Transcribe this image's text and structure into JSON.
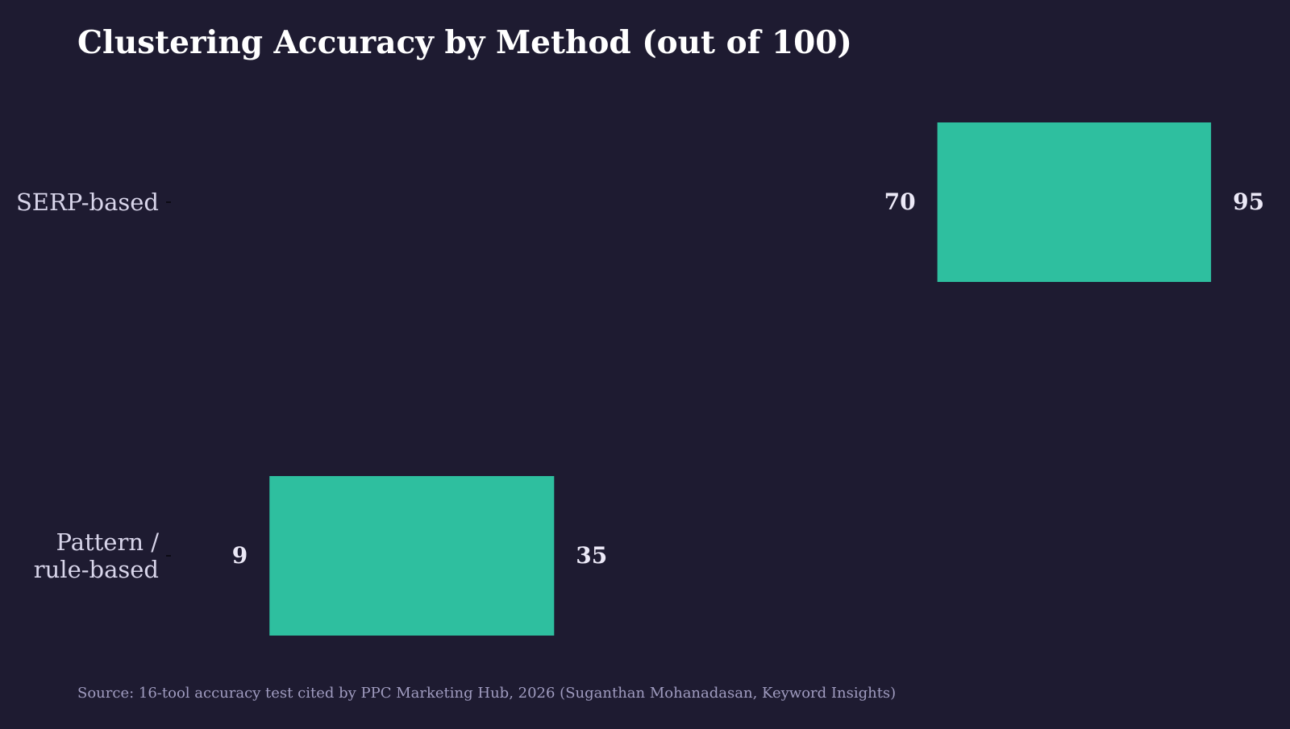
{
  "chart_data": {
    "type": "bar",
    "orientation": "horizontal",
    "style": "range",
    "title": "Clustering Accuracy by Method (out of 100)",
    "source": "Source: 16-tool accuracy test cited by PPC Marketing Hub, 2026 (Suganthan Mohanadasan, Keyword Insights)",
    "categories": [
      [
        "SERP-based"
      ],
      [
        "Pattern /",
        "rule-based"
      ]
    ],
    "series": [
      {
        "ranges": [
          {
            "low": 70,
            "high": 95,
            "low_label": "70",
            "high_label": "95"
          },
          {
            "low": 9,
            "high": 35,
            "low_label": "9",
            "high_label": "35"
          }
        ]
      }
    ],
    "xlim": [
      0,
      100
    ],
    "grid": false,
    "legend": "none",
    "colors": {
      "background": "#1e1b31",
      "bar": "#2ebf9f",
      "title": "#ffffff",
      "category_label": "#d8d5ea",
      "value_label": "#ece9f7",
      "source": "#a09cc0"
    }
  }
}
